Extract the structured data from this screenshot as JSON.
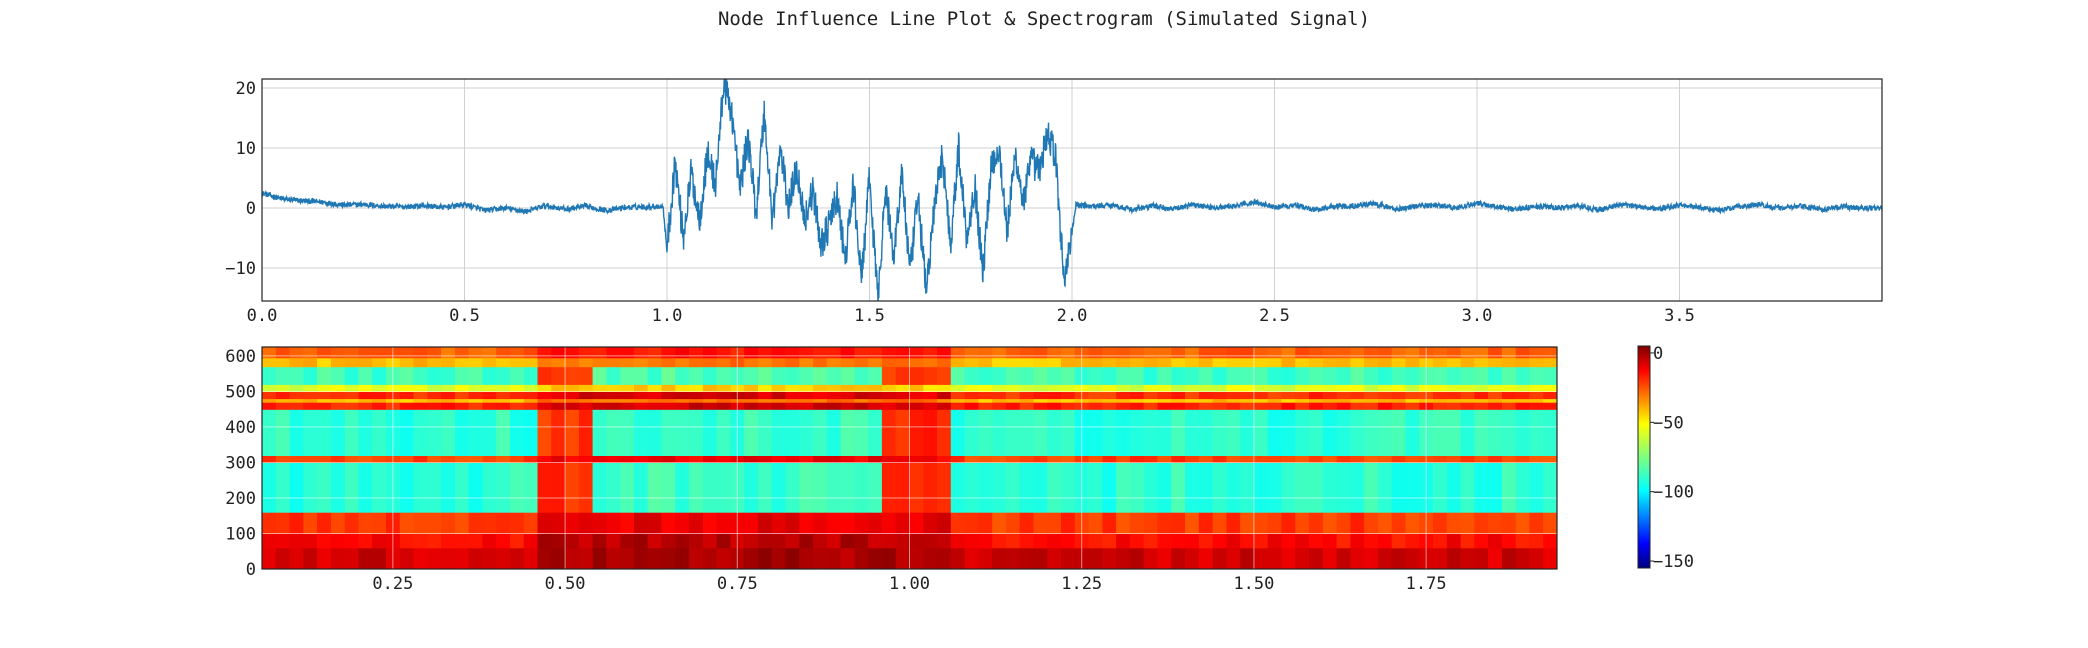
{
  "title": "Node Influence Line Plot & Spectrogram (Simulated Signal)",
  "chart_data": [
    {
      "type": "line",
      "title": "",
      "xlabel": "",
      "ylabel": "",
      "xlim": [
        0.0,
        4.0
      ],
      "ylim": [
        -15.5,
        21.5
      ],
      "xticks": [
        "0.0",
        "0.5",
        "1.0",
        "1.5",
        "2.0",
        "2.5",
        "3.0",
        "3.5"
      ],
      "yticks": [
        "20",
        "10",
        "0",
        "−10"
      ],
      "grid": true,
      "line_color": "#1f77b4",
      "series": [
        {
          "x": [
            0.0,
            0.05,
            0.1,
            0.15,
            0.2,
            0.25,
            0.3,
            0.35,
            0.4,
            0.45,
            0.5,
            0.55,
            0.6,
            0.65,
            0.7,
            0.75,
            0.8,
            0.85,
            0.9,
            0.95,
            0.99,
            1.0,
            1.02,
            1.04,
            1.06,
            1.08,
            1.1,
            1.12,
            1.14,
            1.16,
            1.18,
            1.2,
            1.22,
            1.24,
            1.26,
            1.28,
            1.3,
            1.32,
            1.34,
            1.36,
            1.38,
            1.4,
            1.42,
            1.44,
            1.46,
            1.48,
            1.5,
            1.52,
            1.54,
            1.56,
            1.58,
            1.6,
            1.62,
            1.64,
            1.66,
            1.68,
            1.7,
            1.72,
            1.74,
            1.76,
            1.78,
            1.8,
            1.82,
            1.84,
            1.86,
            1.88,
            1.9,
            1.92,
            1.94,
            1.96,
            1.98,
            2.0,
            2.01,
            2.05,
            2.1,
            2.15,
            2.2,
            2.25,
            2.3,
            2.35,
            2.4,
            2.45,
            2.5,
            2.55,
            2.6,
            2.65,
            2.7,
            2.75,
            2.8,
            2.85,
            2.9,
            2.95,
            3.0,
            3.05,
            3.1,
            3.15,
            3.2,
            3.25,
            3.3,
            3.35,
            3.4,
            3.45,
            3.5,
            3.55,
            3.6,
            3.65,
            3.7,
            3.75,
            3.8,
            3.85,
            3.9,
            3.95,
            4.0
          ],
          "y": [
            2.5,
            1.5,
            1.2,
            1.0,
            0.5,
            0.6,
            0.3,
            0.2,
            0.4,
            0.1,
            0.6,
            -0.4,
            0.0,
            -0.6,
            0.4,
            -0.2,
            0.3,
            -0.4,
            0.1,
            0.2,
            0.3,
            -7.0,
            8.0,
            -5.0,
            6.0,
            -2.0,
            9.0,
            4.0,
            21.0,
            16.0,
            3.0,
            12.0,
            -1.0,
            16.0,
            -2.0,
            10.0,
            0.0,
            7.0,
            -2.0,
            3.0,
            -6.0,
            -3.0,
            2.0,
            -9.0,
            4.0,
            -12.0,
            5.0,
            -15.0,
            3.0,
            -8.0,
            6.0,
            -11.0,
            2.0,
            -14.0,
            0.0,
            9.0,
            -6.0,
            10.0,
            -5.0,
            4.0,
            -11.0,
            7.0,
            10.0,
            -4.0,
            9.0,
            1.0,
            8.0,
            6.0,
            13.0,
            8.0,
            -12.0,
            -4.0,
            0.5,
            0.3,
            0.5,
            -0.3,
            0.4,
            -0.2,
            0.6,
            0.0,
            0.3,
            1.0,
            0.2,
            0.5,
            -0.3,
            0.3,
            0.4,
            0.7,
            -0.2,
            0.3,
            0.5,
            0.0,
            0.8,
            0.2,
            -0.2,
            0.3,
            0.0,
            0.4,
            -0.3,
            0.5,
            0.3,
            -0.2,
            0.5,
            0.1,
            -0.4,
            0.3,
            0.5,
            0.0,
            0.3,
            -0.2,
            0.2,
            0.0,
            0.0
          ]
        }
      ]
    },
    {
      "type": "heatmap",
      "title": "",
      "xlabel": "",
      "ylabel": "",
      "xlim": [
        0.06,
        1.94
      ],
      "ylim": [
        0,
        625
      ],
      "xticks": [
        "0.25",
        "0.50",
        "0.75",
        "1.00",
        "1.25",
        "1.50",
        "1.75"
      ],
      "yticks": [
        "600",
        "500",
        "400",
        "300",
        "200",
        "100",
        "0"
      ],
      "grid": true,
      "colormap": "jet",
      "colorbar": {
        "range": [
          -155,
          5
        ],
        "ticks": [
          "0",
          "−50",
          "−100",
          "−150"
        ]
      },
      "active_interval": [
        0.45,
        1.05
      ],
      "inner_interval": [
        0.55,
        0.95
      ],
      "bands": [
        {
          "from": 0,
          "to": 60,
          "level": -8
        },
        {
          "from": 60,
          "to": 100,
          "level": -16
        },
        {
          "from": 100,
          "to": 160,
          "level": -24
        },
        {
          "from": 160,
          "to": 300,
          "level": -88
        },
        {
          "from": 300,
          "to": 320,
          "level": -25
        },
        {
          "from": 320,
          "to": 450,
          "level": -88
        },
        {
          "from": 450,
          "to": 470,
          "level": -20
        },
        {
          "from": 470,
          "to": 480,
          "level": -45
        },
        {
          "from": 480,
          "to": 500,
          "level": -22
        },
        {
          "from": 500,
          "to": 520,
          "level": -60
        },
        {
          "from": 520,
          "to": 570,
          "level": -85
        },
        {
          "from": 570,
          "to": 595,
          "level": -45
        },
        {
          "from": 595,
          "to": 625,
          "level": -30
        }
      ]
    }
  ]
}
